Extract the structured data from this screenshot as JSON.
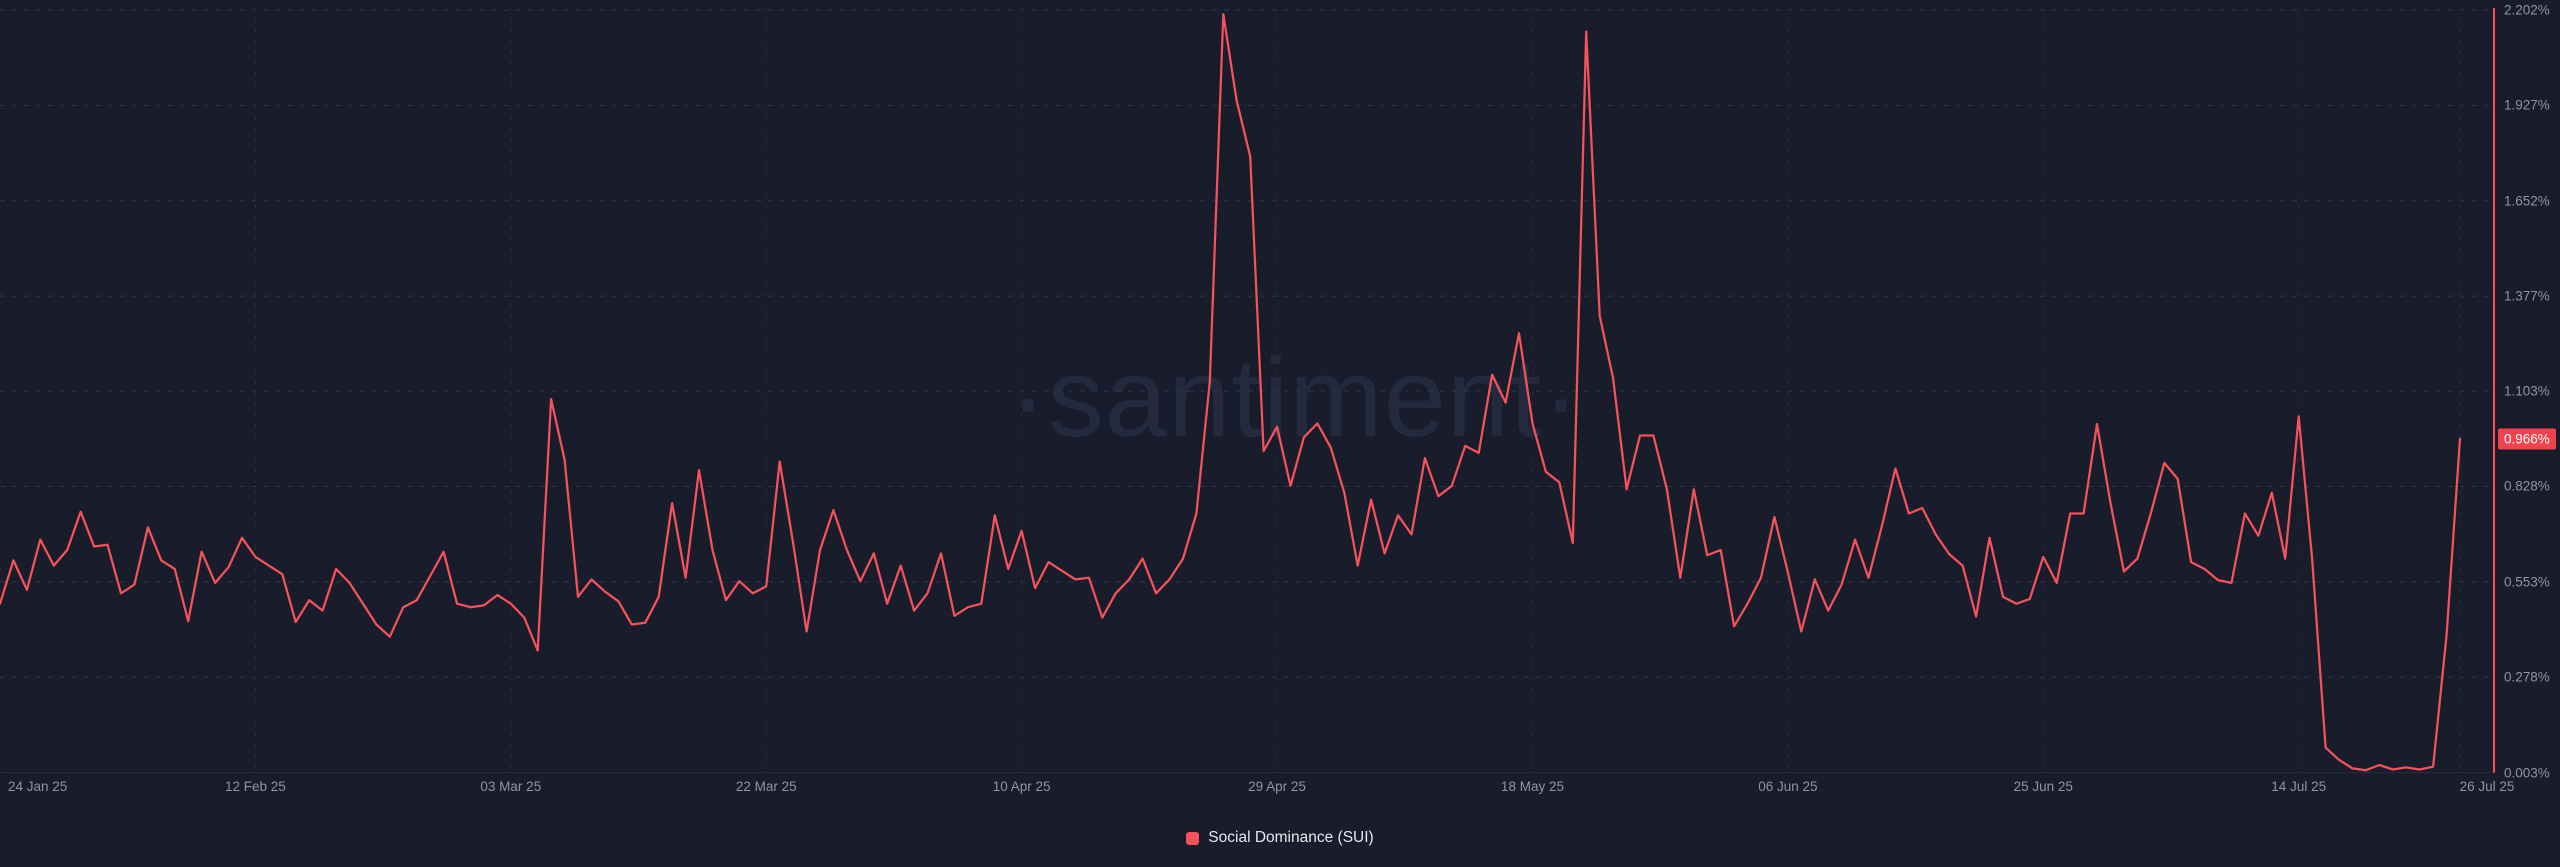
{
  "watermark": "·santiment·",
  "legend": {
    "label": "Social Dominance (SUI)",
    "swatch_color": "#f4535b"
  },
  "colors": {
    "background": "#191c2b",
    "line": "#f4535b",
    "right_axis_line": "#f4535b",
    "badge_bg": "#f0434e",
    "badge_text": "#ffffff",
    "grid_horizontal": "#2f3449",
    "grid_vertical": "#272c3f",
    "bottom_axis_line": "#262b3d",
    "tick_label": "#8e94a6",
    "legend_text": "#e6e8ee",
    "watermark": "#242a3e"
  },
  "chart_data": {
    "type": "line",
    "title": "Social Dominance (SUI)",
    "series_name": "Social Dominance (SUI)",
    "unit": "%",
    "interval": "1 day",
    "start_date": "24 Jan 25",
    "end_date": "26 Jul 25",
    "grid": "dashed",
    "legend_position": "bottom-center",
    "ylim": [
      0.003,
      2.202
    ],
    "y_ticks": [
      {
        "label": "2.202%",
        "value": 2.202
      },
      {
        "label": "1.927%",
        "value": 1.927
      },
      {
        "label": "1.652%",
        "value": 1.652
      },
      {
        "label": "1.377%",
        "value": 1.377
      },
      {
        "label": "1.103%",
        "value": 1.103
      },
      {
        "label": "0.828%",
        "value": 0.828
      },
      {
        "label": "0.553%",
        "value": 0.553
      },
      {
        "label": "0.278%",
        "value": 0.278
      },
      {
        "label": "0.003%",
        "value": 0.003
      }
    ],
    "x_ticks": [
      {
        "label": "24 Jan 25",
        "day": 0
      },
      {
        "label": "12 Feb 25",
        "day": 19
      },
      {
        "label": "03 Mar 25",
        "day": 38
      },
      {
        "label": "22 Mar 25",
        "day": 57
      },
      {
        "label": "10 Apr 25",
        "day": 76
      },
      {
        "label": "29 Apr 25",
        "day": 95
      },
      {
        "label": "18 May 25",
        "day": 114
      },
      {
        "label": "06 Jun 25",
        "day": 133
      },
      {
        "label": "25 Jun 25",
        "day": 152
      },
      {
        "label": "14 Jul 25",
        "day": 171
      },
      {
        "label": "26 Jul 25",
        "day": 183
      }
    ],
    "latest_value": 0.966,
    "latest_value_label": "0.966%",
    "values": [
      0.49,
      0.615,
      0.53,
      0.675,
      0.6,
      0.645,
      0.755,
      0.655,
      0.66,
      0.52,
      0.545,
      0.71,
      0.615,
      0.59,
      0.44,
      0.64,
      0.55,
      0.595,
      0.68,
      0.625,
      0.6,
      0.575,
      0.437,
      0.5,
      0.47,
      0.59,
      0.55,
      0.49,
      0.43,
      0.395,
      0.48,
      0.5,
      0.57,
      0.64,
      0.49,
      0.48,
      0.485,
      0.515,
      0.49,
      0.45,
      0.355,
      1.08,
      0.905,
      0.51,
      0.56,
      0.525,
      0.497,
      0.43,
      0.435,
      0.51,
      0.78,
      0.565,
      0.875,
      0.645,
      0.5,
      0.555,
      0.52,
      0.54,
      0.9,
      0.665,
      0.41,
      0.645,
      0.76,
      0.645,
      0.555,
      0.635,
      0.49,
      0.6,
      0.47,
      0.52,
      0.635,
      0.455,
      0.48,
      0.49,
      0.745,
      0.59,
      0.7,
      0.535,
      0.61,
      0.585,
      0.56,
      0.565,
      0.45,
      0.52,
      0.56,
      0.62,
      0.52,
      0.56,
      0.62,
      0.75,
      1.13,
      2.19,
      1.94,
      1.78,
      0.93,
      1.0,
      0.83,
      0.97,
      1.01,
      0.94,
      0.81,
      0.6,
      0.79,
      0.635,
      0.745,
      0.69,
      0.91,
      0.8,
      0.83,
      0.945,
      0.925,
      1.15,
      1.07,
      1.27,
      1.01,
      0.87,
      0.84,
      0.665,
      2.14,
      1.32,
      1.14,
      0.82,
      0.975,
      0.975,
      0.82,
      0.565,
      0.82,
      0.63,
      0.645,
      0.425,
      0.49,
      0.565,
      0.74,
      0.58,
      0.41,
      0.56,
      0.47,
      0.545,
      0.675,
      0.565,
      0.715,
      0.88,
      0.75,
      0.766,
      0.69,
      0.633,
      0.6,
      0.453,
      0.68,
      0.51,
      0.49,
      0.504,
      0.625,
      0.55,
      0.75,
      0.75,
      1.008,
      0.78,
      0.583,
      0.62,
      0.75,
      0.896,
      0.85,
      0.61,
      0.59,
      0.558,
      0.55,
      0.75,
      0.686,
      0.81,
      0.62,
      1.03,
      0.62,
      0.075,
      0.04,
      0.015,
      0.01,
      0.025,
      0.012,
      0.018,
      0.012,
      0.02,
      0.4,
      0.966
    ]
  }
}
